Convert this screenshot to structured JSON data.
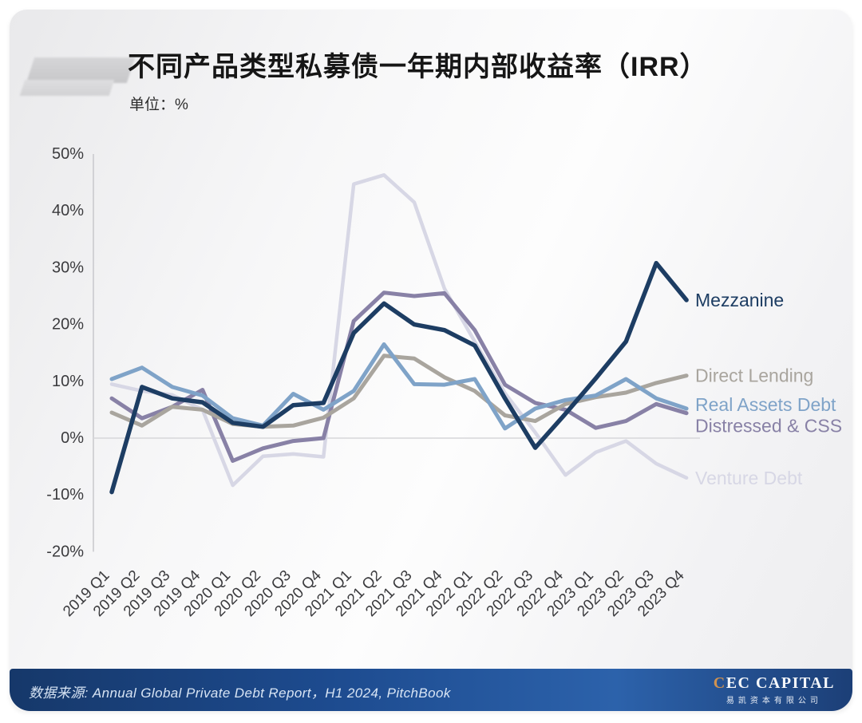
{
  "page": {
    "title": "不同产品类型私募债一年期内部收益率（IRR）",
    "unit_label": "单位：%"
  },
  "footer": {
    "source_text": "数据来源: Annual Global Private Debt Report，H1 2024, PitchBook",
    "logo_main_first": "C",
    "logo_main_rest": "EC CAPITAL",
    "logo_sub": "易凯资本有限公司"
  },
  "chart_data": {
    "type": "line",
    "title": "不同产品类型私募债一年期内部收益率（IRR）",
    "ylabel": "%",
    "ylim": [
      -20,
      50
    ],
    "y_ticks": [
      "50%",
      "40%",
      "30%",
      "20%",
      "10%",
      "0%",
      "-10%",
      "-20%"
    ],
    "y_tick_values": [
      50,
      40,
      30,
      20,
      10,
      0,
      -10,
      -20
    ],
    "grid": "zero-line-only",
    "legend_position": "right-inline-labels",
    "categories": [
      "2019 Q1",
      "2019 Q2",
      "2019 Q3",
      "2019 Q4",
      "2020 Q1",
      "2020 Q2",
      "2020 Q3",
      "2020 Q4",
      "2021 Q1",
      "2021 Q2",
      "2021 Q3",
      "2021 Q4",
      "2022 Q1",
      "2022 Q2",
      "2022 Q3",
      "2022 Q4",
      "2023 Q1",
      "2023 Q2",
      "2023 Q3",
      "2023 Q4"
    ],
    "series": [
      {
        "name": "Venture Debt",
        "color": "#d7d7e5",
        "values": [
          9.5,
          8.3,
          7.6,
          5,
          -8.3,
          -3.2,
          -2.8,
          -3.3,
          44.7,
          46.3,
          41.5,
          26.3,
          17,
          7.9,
          1,
          -6.5,
          -2.5,
          -0.5,
          -4.5,
          -7
        ]
      },
      {
        "name": "Distressed & CSS",
        "color": "#8881a6",
        "values": [
          7,
          3.5,
          5.5,
          8.5,
          -4,
          -1.8,
          -0.5,
          0,
          20.6,
          25.6,
          25,
          25.5,
          19,
          9.4,
          6.2,
          5,
          1.8,
          3,
          6,
          4.4
        ]
      },
      {
        "name": "Direct Lending",
        "color": "#a9a59e",
        "values": [
          4.5,
          2.2,
          5.5,
          5,
          2.5,
          2,
          2.2,
          3.6,
          7,
          14.5,
          14,
          10.7,
          8.3,
          4,
          3,
          6,
          7.2,
          8,
          9.7,
          11
        ]
      },
      {
        "name": "Real Assets Debt",
        "color": "#7fa3c8",
        "values": [
          10.4,
          12.4,
          9,
          7.5,
          3.5,
          2.2,
          7.8,
          5,
          8.3,
          16.5,
          9.5,
          9.4,
          10.4,
          1.7,
          5.2,
          6.7,
          7.5,
          10.4,
          7,
          5.2
        ]
      },
      {
        "name": "Mezzanine",
        "color": "#1d3d63",
        "values": [
          -9.5,
          9,
          7,
          6.3,
          2.7,
          2,
          5.8,
          6.2,
          18.5,
          23.7,
          20,
          19,
          16.3,
          7,
          -1.7,
          4.3,
          10.5,
          17,
          30.8,
          24.3
        ]
      }
    ]
  }
}
